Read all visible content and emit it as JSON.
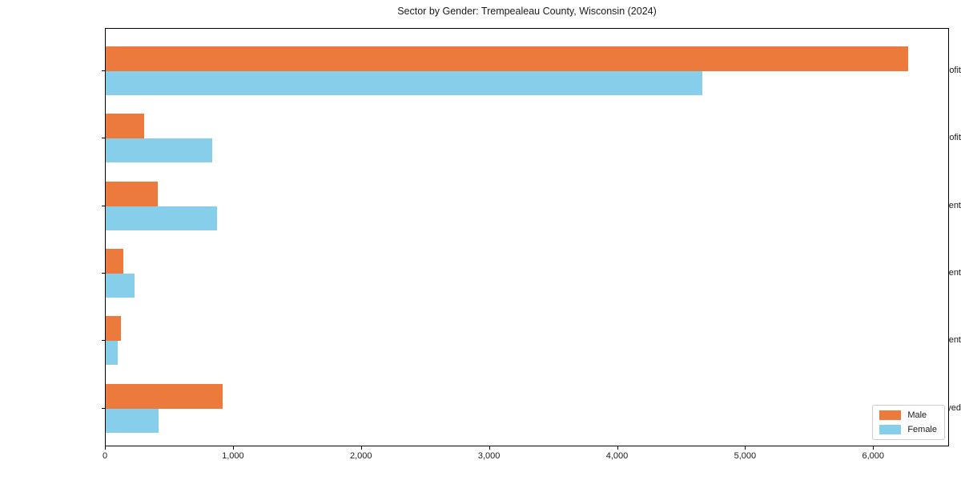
{
  "chart_data": {
    "type": "bar",
    "orientation": "horizontal",
    "title": "Sector by Gender: Trempealeau County, Wisconsin (2024)",
    "categories": [
      "Private For-Profit",
      "Private Non-Profit",
      "Local Government",
      "State Government",
      "Federal Government",
      "Self-Employed"
    ],
    "series": [
      {
        "name": "Male",
        "color": "#EC7A3C",
        "values": [
          6270,
          300,
          405,
          135,
          120,
          915
        ]
      },
      {
        "name": "Female",
        "color": "#87CEEB",
        "values": [
          4660,
          830,
          870,
          225,
          95,
          410
        ]
      }
    ],
    "xlabel": "",
    "ylabel": "",
    "xlim": [
      0,
      6580
    ],
    "x_ticks": [
      {
        "value": 0,
        "label": "0"
      },
      {
        "value": 1000,
        "label": "1,000"
      },
      {
        "value": 2000,
        "label": "2,000"
      },
      {
        "value": 3000,
        "label": "3,000"
      },
      {
        "value": 4000,
        "label": "4,000"
      },
      {
        "value": 5000,
        "label": "5,000"
      },
      {
        "value": 6000,
        "label": "6,000"
      }
    ],
    "grid": false,
    "legend_position": "lower right"
  }
}
